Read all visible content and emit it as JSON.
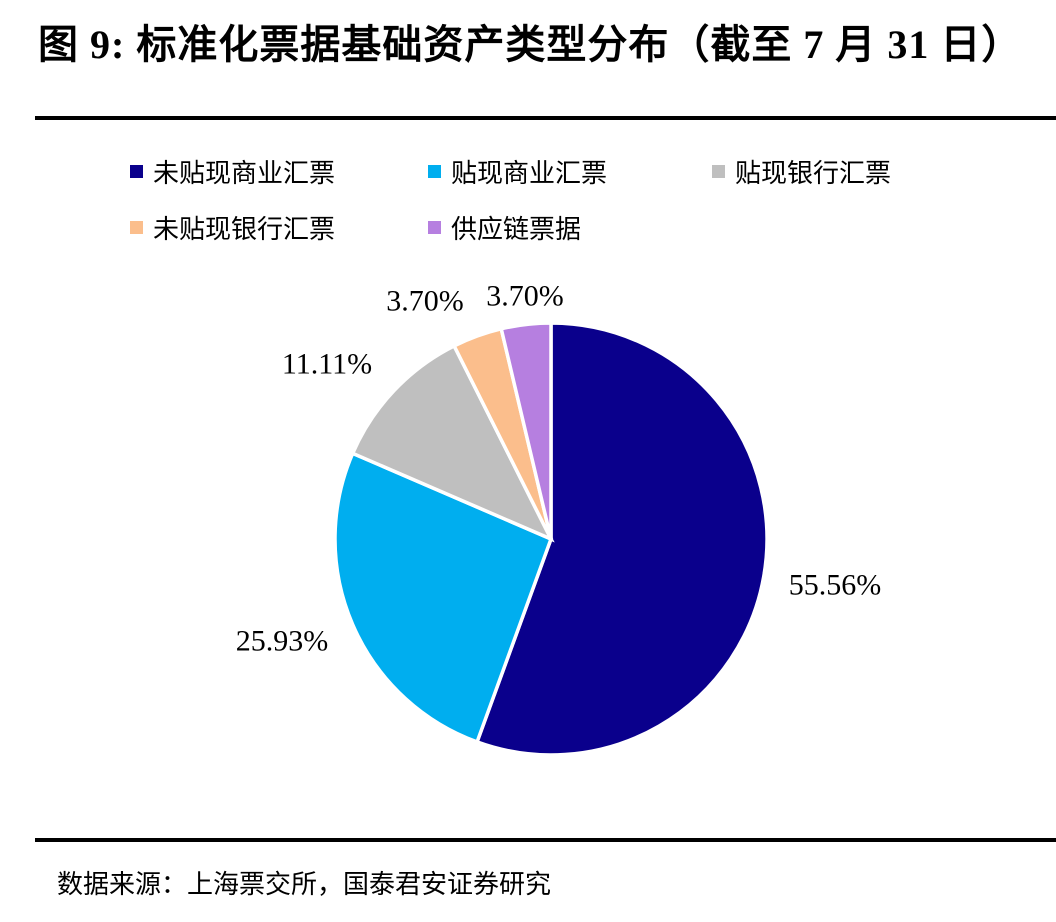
{
  "title": "图 9:  标准化票据基础资产类型分布（截至 7 月 31 日）",
  "source": "数据来源：上海票交所，国泰君安证券研究",
  "chart_data": {
    "type": "pie",
    "title": "标准化票据基础资产类型分布（截至 7 月 31 日）",
    "legend_position": "top",
    "start_angle_deg": 0,
    "direction": "clockwise",
    "slices": [
      {
        "label": "未贴现商业汇票",
        "value": 55.56,
        "display": "55.56%",
        "color": "#0A008C"
      },
      {
        "label": "贴现商业汇票",
        "value": 25.93,
        "display": "25.93%",
        "color": "#00AEEF"
      },
      {
        "label": "贴现银行汇票",
        "value": 11.11,
        "display": "11.11%",
        "color": "#BFBFBF"
      },
      {
        "label": "未贴现银行汇票",
        "value": 3.7,
        "display": "3.70%",
        "color": "#FBBE8C"
      },
      {
        "label": "供应链票据",
        "value": 3.7,
        "display": "3.70%",
        "color": "#B67FE0"
      }
    ]
  }
}
